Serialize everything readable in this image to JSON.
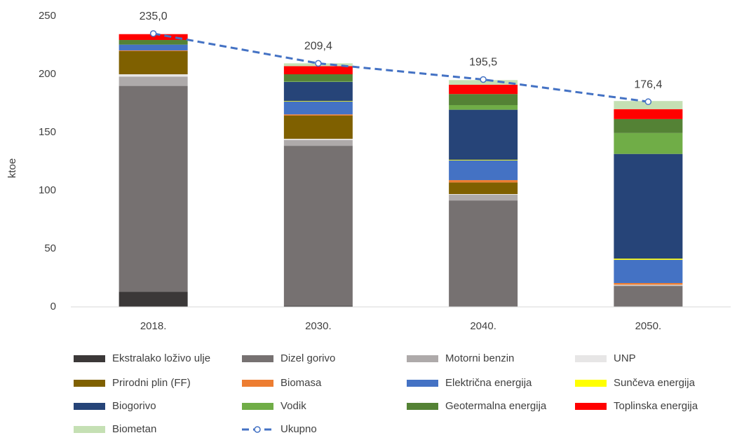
{
  "chart_data": {
    "type": "bar",
    "stacked": true,
    "y_label": "ktoe",
    "categories": [
      "2018.",
      "2030.",
      "2040.",
      "2050."
    ],
    "ylim": [
      0,
      250
    ],
    "yticks": [
      0,
      50,
      100,
      150,
      200,
      250
    ],
    "grid": false,
    "series": [
      {
        "name": "Ekstralako loživo ulje",
        "color": "#3b3838",
        "values": [
          13,
          1,
          0.5,
          0.5
        ]
      },
      {
        "name": "Dizel gorivo",
        "color": "#767171",
        "values": [
          177,
          137.5,
          91,
          17.5
        ]
      },
      {
        "name": "Motorni benzin",
        "color": "#aeaaaa",
        "values": [
          8,
          5,
          5,
          0.5
        ]
      },
      {
        "name": "UNP",
        "color": "#e7e6e6",
        "values": [
          2,
          1,
          0.5,
          0.5
        ]
      },
      {
        "name": "Prirodni plin (FF)",
        "color": "#7f6000",
        "values": [
          20,
          20,
          10,
          0
        ]
      },
      {
        "name": "Biomasa",
        "color": "#ed7d31",
        "values": [
          0.5,
          1,
          2,
          1.5
        ]
      },
      {
        "name": "Električna energija",
        "color": "#4472c4",
        "values": [
          5,
          11,
          17,
          20
        ]
      },
      {
        "name": "Sunčeva energija",
        "color": "#ffff00",
        "values": [
          0,
          0.5,
          0.5,
          1
        ]
      },
      {
        "name": "Biogorivo",
        "color": "#264478",
        "values": [
          0,
          16.5,
          43,
          90
        ]
      },
      {
        "name": "Vodik",
        "color": "#70ad47",
        "values": [
          0,
          0.5,
          4,
          18
        ]
      },
      {
        "name": "Geotermalna energija",
        "color": "#548235",
        "values": [
          4,
          6,
          9.5,
          12
        ]
      },
      {
        "name": "Toplinska energija",
        "color": "#ff0000",
        "values": [
          5,
          7,
          8,
          8.5
        ]
      },
      {
        "name": "Biometan",
        "color": "#c5e0b4",
        "values": [
          0,
          2.4,
          4,
          7
        ]
      },
      {
        "name": "Ukupno",
        "type": "line",
        "color": "#4472c4",
        "values": [
          235.0,
          209.4,
          195.5,
          176.4
        ],
        "value_labels": [
          "235,0",
          "209,4",
          "195,5",
          "176,4"
        ]
      }
    ]
  }
}
